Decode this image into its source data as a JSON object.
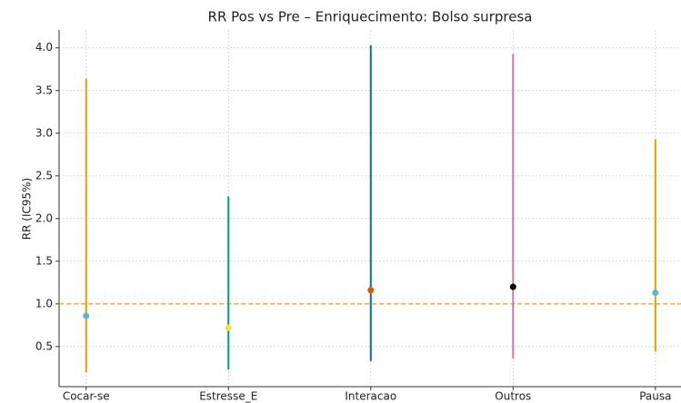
{
  "chart_data": {
    "type": "errorbar",
    "title": "RR Pos vs Pre – Enriquecimento: Bolso surpresa",
    "y_label": "RR (IC95%)",
    "categories": [
      "Cocar-se",
      "Estresse_E",
      "Interacao",
      "Outros",
      "Pausa"
    ],
    "values": [
      0.86,
      0.72,
      1.16,
      1.2,
      1.13
    ],
    "ci_low": [
      0.2,
      0.23,
      0.33,
      0.36,
      0.44
    ],
    "ci_high": [
      3.64,
      2.26,
      4.03,
      3.93,
      2.93
    ],
    "bar_colors": [
      "#e69f00",
      "#009e73",
      "#0072b2",
      "#cc79a7",
      "#e69f00"
    ],
    "point_colors": [
      "#56b4e9",
      "#f0e442",
      "#d55e00",
      "#000000",
      "#56b4e9"
    ],
    "reference_line": {
      "value": 1,
      "color": "#e69f00"
    },
    "xlim": [
      -0.19,
      4.18
    ],
    "ylim": [
      0.03,
      4.21
    ],
    "yticks": [
      0.5,
      {
        "value": 1,
        "label": "1.0"
      },
      1.5,
      {
        "value": 2,
        "label": "2.0"
      },
      2.5,
      {
        "value": 3,
        "label": "3.0"
      },
      3.5,
      {
        "value": 4,
        "label": "4.0"
      }
    ],
    "grid": true
  }
}
